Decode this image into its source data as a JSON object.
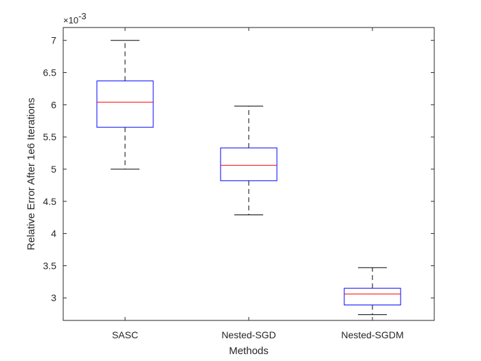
{
  "chart_data": {
    "type": "box",
    "xlabel": "Methods",
    "ylabel": "Relative Error After 1e6 Iterations",
    "y_exponent_label": "×10",
    "y_exponent_power": "-3",
    "categories": [
      "SASC",
      "Nested-SGD",
      "Nested-SGDM"
    ],
    "ylim": [
      2.65,
      7.2
    ],
    "yticks": [
      3,
      3.5,
      4,
      4.5,
      5,
      5.5,
      6,
      6.5,
      7
    ],
    "ytick_labels": [
      "3",
      "3.5",
      "4",
      "4.5",
      "5",
      "5.5",
      "6",
      "6.5",
      "7"
    ],
    "boxes": [
      {
        "whisker_low": 5.0,
        "q1": 5.65,
        "median": 6.04,
        "q3": 6.37,
        "whisker_high": 7.0
      },
      {
        "whisker_low": 4.29,
        "q1": 4.82,
        "median": 5.06,
        "q3": 5.33,
        "whisker_high": 5.98
      },
      {
        "whisker_low": 2.74,
        "q1": 2.89,
        "median": 3.06,
        "q3": 3.15,
        "whisker_high": 3.47
      }
    ],
    "colors": {
      "box": "#0000ff",
      "median": "#ff0000",
      "whisker": "#000000",
      "axes": "#262626"
    },
    "grid": false,
    "legend": "none"
  }
}
